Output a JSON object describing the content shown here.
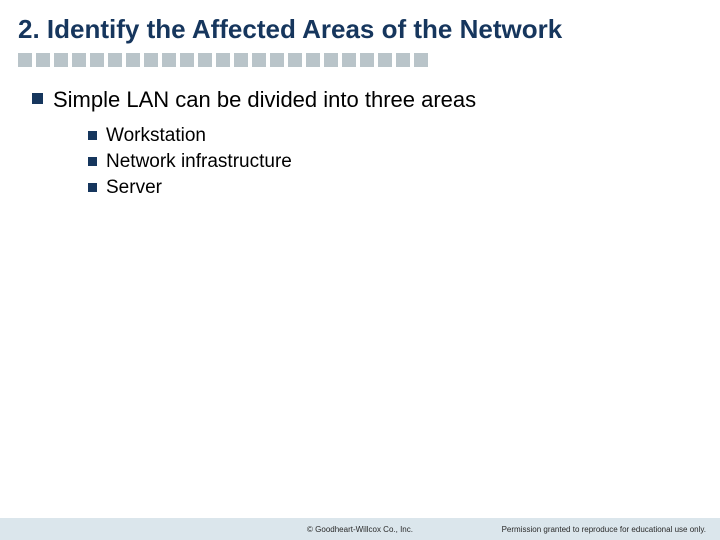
{
  "title": {
    "text": "2. Identify the Affected Areas of the Network",
    "fontsize": 26,
    "color": "#16365d",
    "weight": "bold"
  },
  "divider": {
    "square_count": 23,
    "square_size": 14,
    "gap": 4,
    "color": "#b9c4c9"
  },
  "main_bullet": {
    "text": "Simple LAN can be divided into three areas",
    "fontsize": 22,
    "color": "#000000",
    "square_color": "#16365d",
    "square_size": 11
  },
  "sub_bullets": {
    "items": [
      {
        "text": "Workstation"
      },
      {
        "text": "Network infrastructure"
      },
      {
        "text": "Server"
      }
    ],
    "fontsize": 19,
    "color": "#000000",
    "square_color": "#16365d",
    "square_size": 9
  },
  "footer": {
    "bar_color": "#dbe6ec",
    "copyright": "© Goodheart-Willcox Co., Inc.",
    "permission": "Permission granted to reproduce for educational use only.",
    "fontsize": 8,
    "color": "#2a2a2a"
  },
  "background_color": "#ffffff"
}
